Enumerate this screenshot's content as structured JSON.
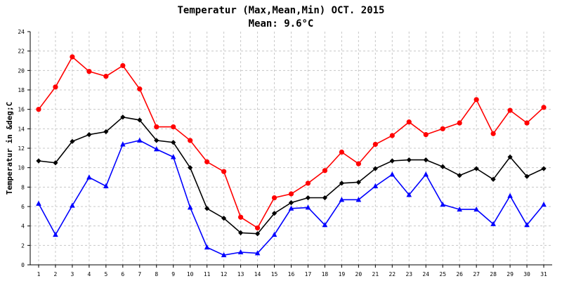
{
  "chart_data": {
    "type": "line",
    "title": "Temperatur (Max,Mean,Min) OCT. 2015",
    "subtitle": "Mean: 9.6°C",
    "xlabel": "",
    "ylabel": "Temperatur in &deg;C",
    "ylim": [
      0,
      24
    ],
    "yticks": [
      "0",
      "2",
      "4",
      "6",
      "8",
      "10",
      "12",
      "14",
      "16",
      "18",
      "20",
      "22",
      "24"
    ],
    "categories": [
      "1",
      "2",
      "3",
      "4",
      "5",
      "6",
      "7",
      "8",
      "9",
      "10",
      "11",
      "12",
      "13",
      "14",
      "15",
      "16",
      "17",
      "18",
      "19",
      "20",
      "21",
      "22",
      "23",
      "24",
      "25",
      "26",
      "27",
      "28",
      "29",
      "30",
      "31"
    ],
    "grid": true,
    "legend": "none",
    "series": [
      {
        "name": "Max",
        "color": "#ff0000",
        "marker": "circle",
        "values": [
          16.0,
          18.3,
          21.4,
          19.9,
          19.4,
          20.5,
          18.1,
          14.2,
          14.2,
          12.8,
          10.6,
          9.6,
          4.9,
          3.8,
          6.9,
          7.3,
          8.4,
          9.7,
          11.6,
          10.4,
          12.4,
          13.3,
          14.7,
          13.4,
          14.0,
          14.6,
          17.0,
          13.5,
          15.9,
          14.6,
          16.2
        ]
      },
      {
        "name": "Mean",
        "color": "#000000",
        "marker": "diamond",
        "values": [
          10.7,
          10.5,
          12.7,
          13.4,
          13.7,
          15.2,
          14.9,
          12.8,
          12.6,
          10.0,
          5.8,
          4.8,
          3.3,
          3.2,
          5.3,
          6.4,
          6.9,
          6.9,
          8.4,
          8.5,
          9.9,
          10.7,
          10.8,
          10.8,
          10.1,
          9.2,
          9.9,
          8.8,
          11.1,
          9.1,
          9.9
        ]
      },
      {
        "name": "Min",
        "color": "#0000ff",
        "marker": "triangle",
        "values": [
          6.3,
          3.1,
          6.1,
          9.0,
          8.1,
          12.4,
          12.8,
          11.9,
          11.1,
          5.9,
          1.8,
          1.0,
          1.3,
          1.2,
          3.1,
          5.8,
          5.9,
          4.1,
          6.7,
          6.7,
          8.1,
          9.3,
          7.2,
          9.3,
          6.2,
          5.7,
          5.7,
          4.2,
          7.1,
          4.1,
          6.2
        ]
      }
    ]
  }
}
